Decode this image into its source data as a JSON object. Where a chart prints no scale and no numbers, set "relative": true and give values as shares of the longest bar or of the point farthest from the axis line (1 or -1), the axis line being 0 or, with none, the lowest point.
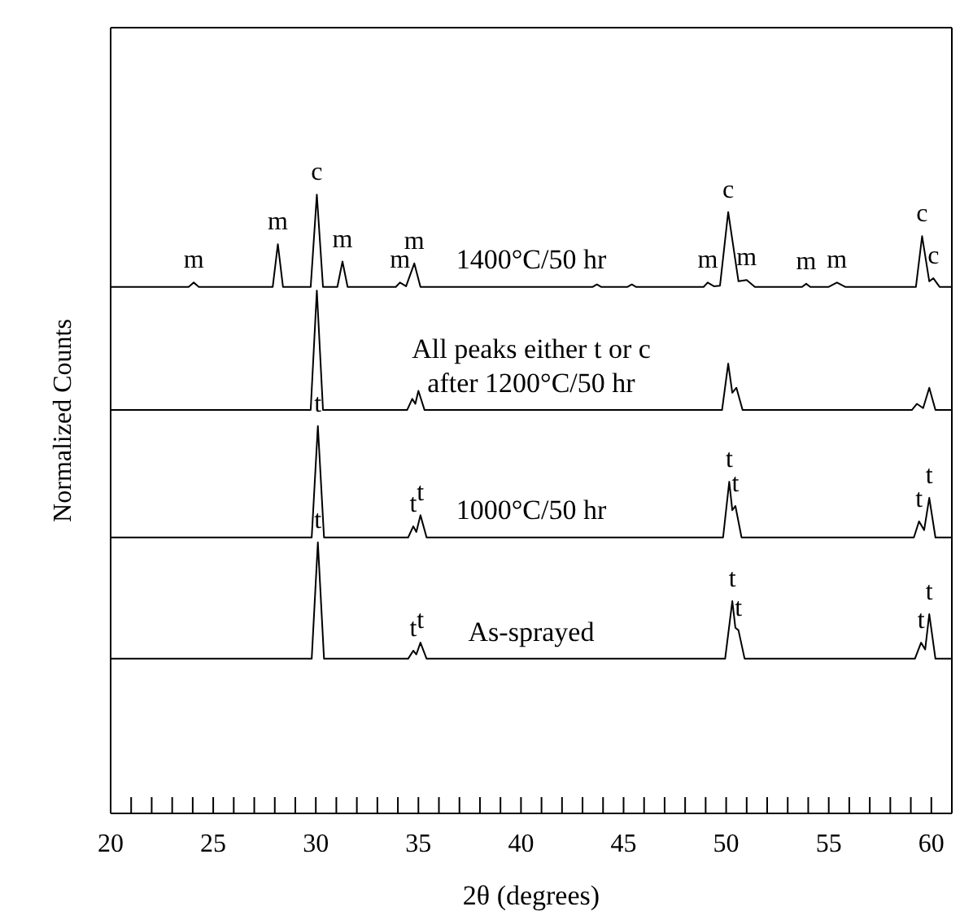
{
  "chart_data": {
    "type": "line",
    "relative": true,
    "xlabel": "2θ (degrees)",
    "ylabel": "Normalized Counts",
    "xlim": [
      20,
      61
    ],
    "xticks": [
      20,
      {
        "value": 21,
        "label": null
      },
      {
        "value": 22,
        "label": null
      },
      {
        "value": 23,
        "label": null
      },
      {
        "value": 24,
        "label": null
      },
      25,
      {
        "value": 26,
        "label": null
      },
      {
        "value": 27,
        "label": null
      },
      {
        "value": 28,
        "label": null
      },
      {
        "value": 29,
        "label": null
      },
      30,
      {
        "value": 31,
        "label": null
      },
      {
        "value": 32,
        "label": null
      },
      {
        "value": 33,
        "label": null
      },
      {
        "value": 34,
        "label": null
      },
      35,
      {
        "value": 36,
        "label": null
      },
      {
        "value": 37,
        "label": null
      },
      {
        "value": 38,
        "label": null
      },
      {
        "value": 39,
        "label": null
      },
      40,
      {
        "value": 41,
        "label": null
      },
      {
        "value": 42,
        "label": null
      },
      {
        "value": 43,
        "label": null
      },
      {
        "value": 44,
        "label": null
      },
      45,
      {
        "value": 46,
        "label": null
      },
      {
        "value": 47,
        "label": null
      },
      {
        "value": 48,
        "label": null
      },
      {
        "value": 49,
        "label": null
      },
      50,
      {
        "value": 51,
        "label": null
      },
      {
        "value": 52,
        "label": null
      },
      {
        "value": 53,
        "label": null
      },
      {
        "value": 54,
        "label": null
      },
      55,
      {
        "value": 56,
        "label": null
      },
      {
        "value": 57,
        "label": null
      },
      {
        "value": 58,
        "label": null
      },
      {
        "value": 59,
        "label": null
      },
      60,
      {
        "value": 61,
        "label": null
      }
    ],
    "tick_labels": "x",
    "marker": "none",
    "line_style": "solid",
    "series": [
      {
        "name": "1400°C/50 hr",
        "color": "#000000",
        "x": [
          20,
          23.8,
          24.05,
          24.3,
          27.9,
          28.15,
          28.4,
          29.75,
          30.05,
          30.35,
          31.05,
          31.3,
          31.55,
          33.9,
          34.1,
          34.4,
          34.8,
          35.1,
          43.5,
          43.7,
          43.9,
          45.2,
          45.4,
          45.6,
          48.9,
          49.1,
          49.4,
          49.7,
          50.1,
          50.6,
          51.0,
          51.4,
          53.7,
          53.9,
          54.1,
          55.0,
          55.4,
          55.8,
          59.25,
          59.55,
          59.9,
          60.1,
          60.4,
          61
        ],
        "values": [
          0.851,
          0.851,
          0.858,
          0.851,
          0.851,
          0.92,
          0.851,
          0.851,
          1.0,
          0.851,
          0.851,
          0.892,
          0.851,
          0.851,
          0.858,
          0.852,
          0.889,
          0.851,
          0.851,
          0.855,
          0.851,
          0.851,
          0.855,
          0.851,
          0.851,
          0.858,
          0.852,
          0.853,
          0.972,
          0.86,
          0.862,
          0.851,
          0.851,
          0.856,
          0.851,
          0.851,
          0.858,
          0.851,
          0.851,
          0.933,
          0.86,
          0.865,
          0.851,
          0.851
        ]
      },
      {
        "name": "All peaks either t or c after 1200°C/50 hr",
        "color": "#000000",
        "x": [
          20,
          29.75,
          30.05,
          30.35,
          34.45,
          34.7,
          34.85,
          35.0,
          35.3,
          49.8,
          50.1,
          50.3,
          50.5,
          50.8,
          59.05,
          59.3,
          59.6,
          59.9,
          60.2,
          61
        ],
        "values": [
          0.652,
          0.652,
          0.845,
          0.652,
          0.652,
          0.67,
          0.662,
          0.683,
          0.652,
          0.652,
          0.727,
          0.68,
          0.688,
          0.652,
          0.652,
          0.662,
          0.655,
          0.688,
          0.652,
          0.652
        ]
      },
      {
        "name": "1000°C/50 hr",
        "color": "#000000",
        "x": [
          20,
          29.8,
          30.1,
          30.4,
          34.5,
          34.75,
          34.9,
          35.1,
          35.4,
          49.85,
          50.15,
          50.3,
          50.45,
          50.75,
          59.15,
          59.4,
          59.65,
          59.9,
          60.2,
          61
        ],
        "values": [
          0.446,
          0.446,
          0.626,
          0.446,
          0.446,
          0.464,
          0.455,
          0.482,
          0.446,
          0.446,
          0.536,
          0.49,
          0.497,
          0.446,
          0.446,
          0.472,
          0.458,
          0.51,
          0.446,
          0.446
        ]
      },
      {
        "name": "As-sprayed",
        "color": "#000000",
        "x": [
          20,
          29.8,
          30.1,
          30.4,
          34.5,
          34.75,
          34.9,
          35.1,
          35.4,
          49.95,
          50.3,
          50.45,
          50.6,
          50.9,
          59.2,
          59.5,
          59.7,
          59.9,
          60.2,
          61
        ],
        "values": [
          0.25,
          0.25,
          0.438,
          0.25,
          0.25,
          0.263,
          0.257,
          0.276,
          0.25,
          0.25,
          0.343,
          0.3,
          0.296,
          0.25,
          0.25,
          0.276,
          0.265,
          0.322,
          0.25,
          0.25
        ]
      }
    ],
    "annotations": [
      {
        "text": "m",
        "x": 24.05,
        "y": 0.858
      },
      {
        "text": "m",
        "x": 28.15,
        "y": 0.92
      },
      {
        "text": "c",
        "x": 30.05,
        "y": 1.0
      },
      {
        "text": "m",
        "x": 31.3,
        "y": 0.892
      },
      {
        "text": "m",
        "x": 34.1,
        "y": 0.858
      },
      {
        "text": "m",
        "x": 34.8,
        "y": 0.889
      },
      {
        "text": "m",
        "x": 49.1,
        "y": 0.858
      },
      {
        "text": "c",
        "x": 50.1,
        "y": 0.972
      },
      {
        "text": "m",
        "x": 51.0,
        "y": 0.862
      },
      {
        "text": "m",
        "x": 53.9,
        "y": 0.856
      },
      {
        "text": "m",
        "x": 55.4,
        "y": 0.858
      },
      {
        "text": "c",
        "x": 59.55,
        "y": 0.933
      },
      {
        "text": "c",
        "x": 60.1,
        "y": 0.865
      },
      {
        "text": "t",
        "x": 30.1,
        "y": 0.626
      },
      {
        "text": "t",
        "x": 34.75,
        "y": 0.464
      },
      {
        "text": "t",
        "x": 35.1,
        "y": 0.482
      },
      {
        "text": "t",
        "x": 50.15,
        "y": 0.536
      },
      {
        "text": "t",
        "x": 50.45,
        "y": 0.497
      },
      {
        "text": "t",
        "x": 59.4,
        "y": 0.472
      },
      {
        "text": "t",
        "x": 59.9,
        "y": 0.51
      },
      {
        "text": "t",
        "x": 30.1,
        "y": 0.438
      },
      {
        "text": "t",
        "x": 34.75,
        "y": 0.263
      },
      {
        "text": "t",
        "x": 35.1,
        "y": 0.276
      },
      {
        "text": "t",
        "x": 50.3,
        "y": 0.343
      },
      {
        "text": "t",
        "x": 50.6,
        "y": 0.296
      },
      {
        "text": "t",
        "x": 59.5,
        "y": 0.276
      },
      {
        "text": "t",
        "x": 59.9,
        "y": 0.322
      }
    ]
  }
}
